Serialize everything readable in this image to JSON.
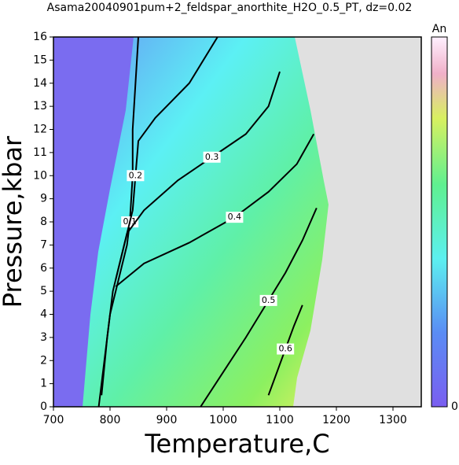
{
  "chart_data": {
    "type": "contour",
    "title": "Asama20040901pum+2_feldspar_anorthite_H2O_0.5_PT, dz=0.02",
    "x_label": "Temperature,C",
    "y_label": "Pressure,kbar",
    "xlim": [
      700,
      1350
    ],
    "ylim": [
      0,
      16
    ],
    "xticks": [
      700,
      800,
      900,
      1000,
      1100,
      1200,
      1300
    ],
    "yticks": [
      0,
      1,
      2,
      3,
      4,
      5,
      6,
      7,
      8,
      9,
      10,
      11,
      12,
      13,
      14,
      15,
      16
    ],
    "colorbar": {
      "label": "An",
      "min": 0
    },
    "series": [
      {
        "name": "0.1",
        "color": "#000000",
        "x": [
          780,
          790,
          800,
          820,
          830,
          835,
          840,
          840,
          845,
          850
        ],
        "values": [
          0,
          2,
          4,
          6,
          7,
          8,
          10,
          12,
          14,
          16
        ]
      },
      {
        "name": "0.2",
        "color": "#000000",
        "x": [
          785,
          795,
          805,
          825,
          840,
          845,
          850,
          880,
          940,
          990
        ],
        "values": [
          0.5,
          3,
          5,
          7,
          8.5,
          10,
          11.5,
          12.5,
          14,
          16
        ]
      },
      {
        "name": "0.3",
        "color": "#000000",
        "x": [
          810,
          830,
          860,
          920,
          980,
          1040,
          1080,
          1100
        ],
        "values": [
          5.5,
          7.5,
          8.5,
          9.8,
          10.8,
          11.8,
          13,
          14.5
        ]
      },
      {
        "name": "0.4",
        "color": "#000000",
        "x": [
          810,
          860,
          940,
          1020,
          1080,
          1130,
          1160
        ],
        "values": [
          5.2,
          6.2,
          7.1,
          8.2,
          9.3,
          10.5,
          11.8
        ]
      },
      {
        "name": "0.5",
        "color": "#000000",
        "x": [
          960,
          1000,
          1040,
          1080,
          1110,
          1140,
          1165
        ],
        "values": [
          0,
          1.5,
          3,
          4.6,
          5.8,
          7.2,
          8.6
        ]
      },
      {
        "name": "0.6",
        "color": "#000000",
        "x": [
          1080,
          1095,
          1110,
          1125,
          1140
        ],
        "values": [
          0.5,
          1.5,
          2.5,
          3.5,
          4.4
        ]
      }
    ]
  }
}
